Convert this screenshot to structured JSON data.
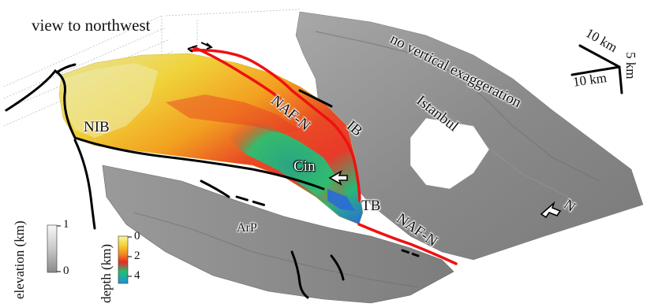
{
  "title": "view to northwest",
  "note": "no vertical exaggeration",
  "scale": {
    "x_label": "10 km",
    "y_label": "10 km",
    "z_label": "5 km"
  },
  "north_label": "N",
  "labels": {
    "nib": "NIB",
    "naf_n_upper": "NAF-N",
    "naf_n_lower": "NAF-N",
    "ib": "IB",
    "cin": "Cin",
    "tb": "TB",
    "arp": "ArP",
    "istanbul": "Istanbul"
  },
  "elevation_legend": {
    "label": "elevation (km)",
    "max": "1",
    "min": "0"
  },
  "depth_legend": {
    "label": "depth (km)",
    "ticks": [
      "0",
      "2",
      "4"
    ]
  },
  "colors": {
    "fault_red": "#ee1111",
    "fault_black": "#000000",
    "land_gray": "#8c8c8c",
    "depth_shallow": "#f2ec80",
    "depth_mid": "#ee3322",
    "depth_deep": "#22bb77"
  }
}
